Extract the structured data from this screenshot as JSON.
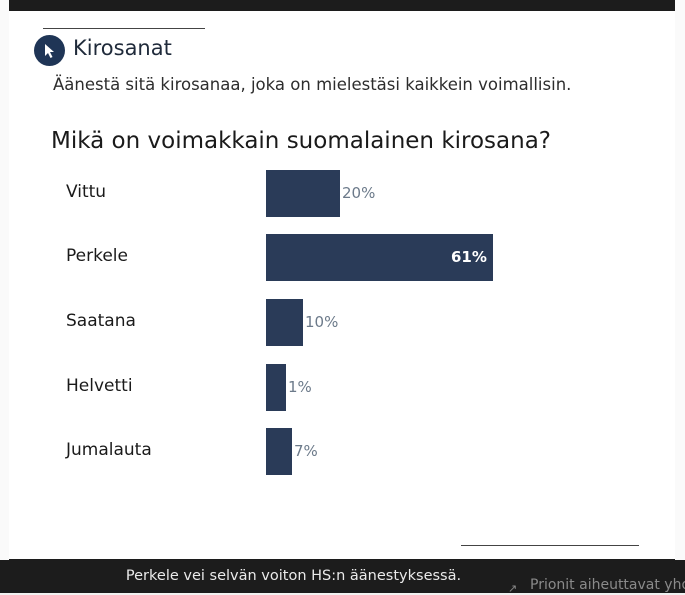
{
  "widget": {
    "brand": "Kirosanat",
    "intro": "Äänestä sitä kirosanaa, joka on mielestäsi kaikkein voimallisin.",
    "question": "Mikä on voimakkain suomalainen kirosana?",
    "bar_color": "#2a3b58",
    "badge_color": "#1f3556",
    "icon": "cursor-icon"
  },
  "chart_data": {
    "type": "bar",
    "orientation": "horizontal",
    "title": "Mikä on voimakkain suomalainen kirosana?",
    "categories": [
      "Vittu",
      "Perkele",
      "Saatana",
      "Helvetti",
      "Jumalauta"
    ],
    "values": [
      20,
      61,
      10,
      1,
      7
    ],
    "labels": [
      "20%",
      "61%",
      "10%",
      "1%",
      "7%"
    ],
    "unit": "%",
    "xlim": [
      0,
      100
    ],
    "grid": false
  },
  "caption": {
    "text": "Perkele vei selvän voiton HS:n äänestyksessä.",
    "right_fragment": "Prionit aiheuttavat yhd"
  }
}
